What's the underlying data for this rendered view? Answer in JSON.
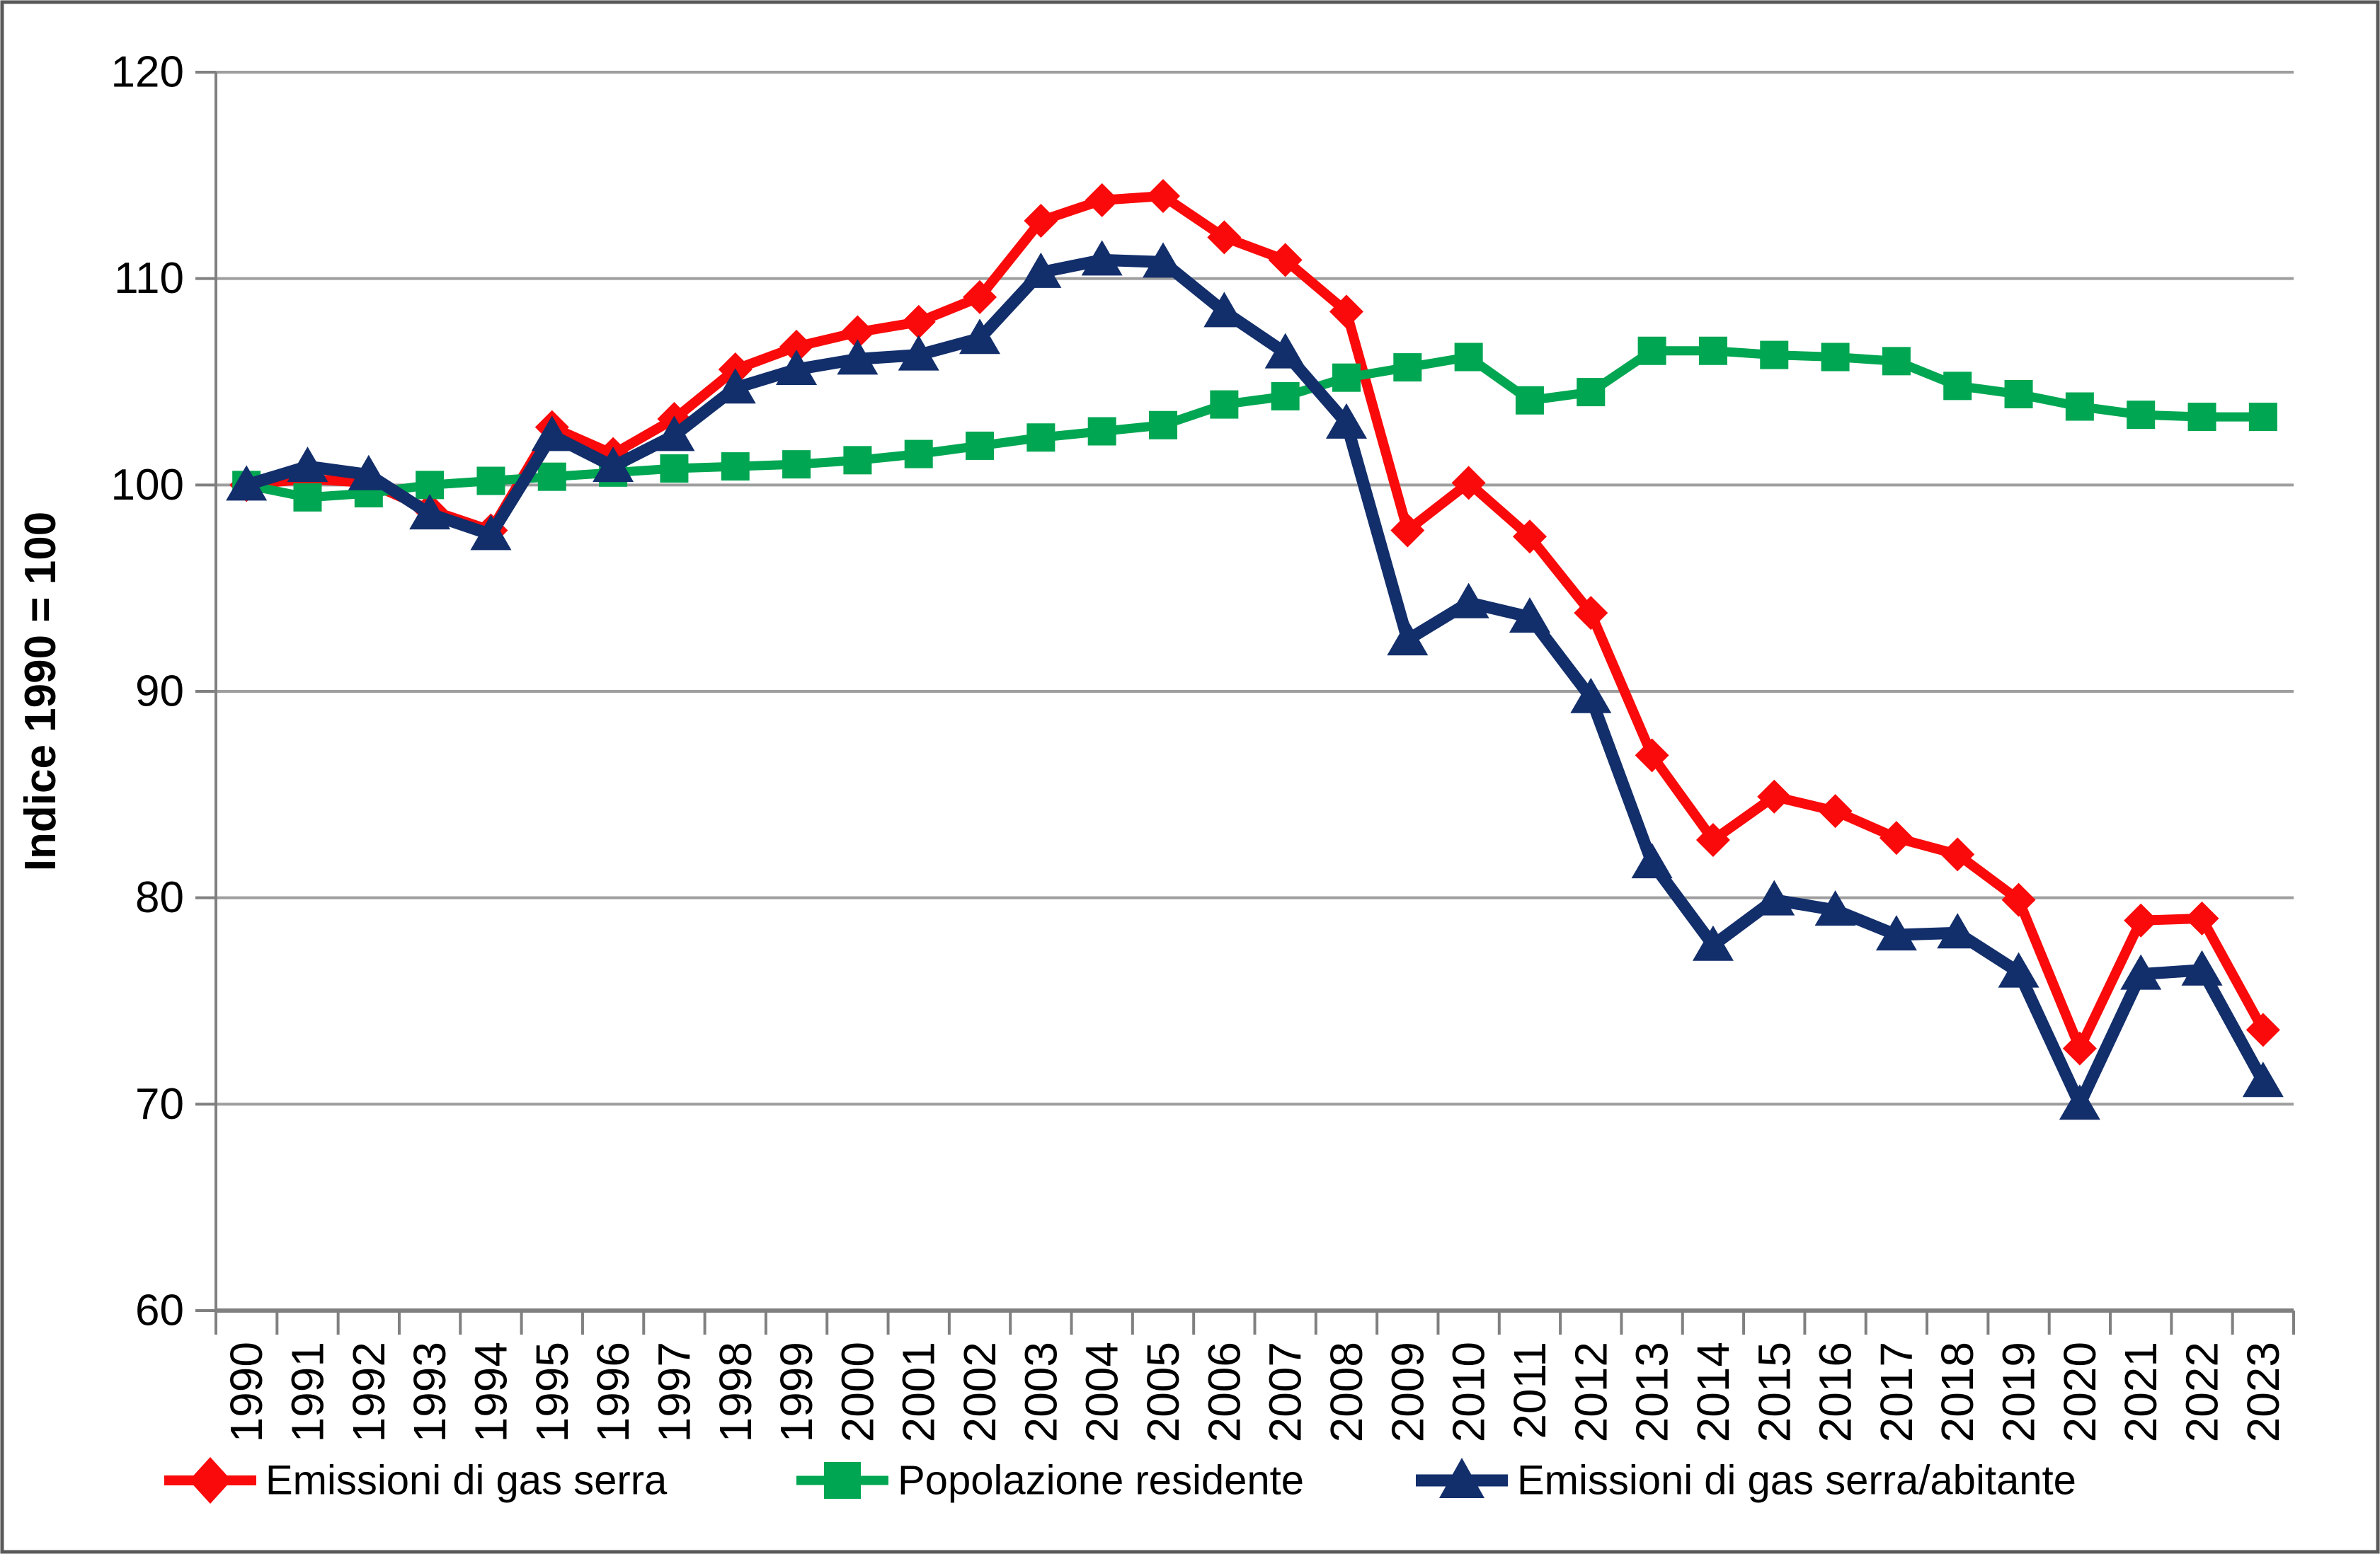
{
  "chart_data": {
    "type": "line",
    "title": "",
    "ylabel": "Indice 1990 = 100",
    "xlabel": "",
    "ylim": [
      60,
      120
    ],
    "yticks": [
      120,
      110,
      100,
      90,
      80,
      70,
      60
    ],
    "grid": true,
    "legend_position": "bottom",
    "grid_color": "#9E9E9E",
    "axis_color": "#808080",
    "border_color": "#595959",
    "categories": [
      1990,
      1991,
      1992,
      1993,
      1994,
      1995,
      1996,
      1997,
      1998,
      1999,
      2000,
      2001,
      2002,
      2003,
      2004,
      2005,
      2006,
      2007,
      2008,
      2009,
      2010,
      2011,
      2012,
      2013,
      2014,
      2015,
      2016,
      2017,
      2018,
      2019,
      2020,
      2021,
      2022,
      2023
    ],
    "series": [
      {
        "name": "Emissioni di gas serra",
        "color": "#FA0A0A",
        "marker": "diamond",
        "values": [
          100,
          100.3,
          100.1,
          98.8,
          97.8,
          102.8,
          101.5,
          103.2,
          105.6,
          106.7,
          107.4,
          107.9,
          109.1,
          112.8,
          113.8,
          114,
          112,
          110.9,
          108.4,
          97.8,
          100.1,
          97.5,
          93.8,
          86.9,
          82.8,
          84.9,
          84.2,
          82.9,
          82.1,
          79.9,
          72.7,
          78.9,
          79,
          73.6
        ]
      },
      {
        "name": "Popolazione residente",
        "color": "#00A651",
        "marker": "square",
        "values": [
          100,
          99.4,
          99.6,
          100,
          100.2,
          100.4,
          100.6,
          100.8,
          100.9,
          101,
          101.2,
          101.5,
          101.9,
          102.3,
          102.6,
          102.9,
          103.9,
          104.3,
          105.2,
          105.7,
          106.2,
          104.1,
          104.5,
          106.5,
          106.5,
          106.3,
          106.2,
          106,
          104.8,
          104.4,
          103.8,
          103.4,
          103.3,
          103.3
        ]
      },
      {
        "name": "Emissioni di gas serra/abitante",
        "color": "#122E6B",
        "marker": "triangle",
        "values": [
          100,
          100.9,
          100.5,
          98.6,
          97.6,
          102.4,
          100.9,
          102.4,
          104.7,
          105.6,
          106.1,
          106.3,
          107.1,
          110.3,
          110.9,
          110.8,
          108.4,
          106.4,
          103,
          92.5,
          94.3,
          93.6,
          89.7,
          81.7,
          77.7,
          79.9,
          79.4,
          78.2,
          78.3,
          76.4,
          70,
          76.3,
          76.5,
          71.1
        ]
      }
    ]
  }
}
